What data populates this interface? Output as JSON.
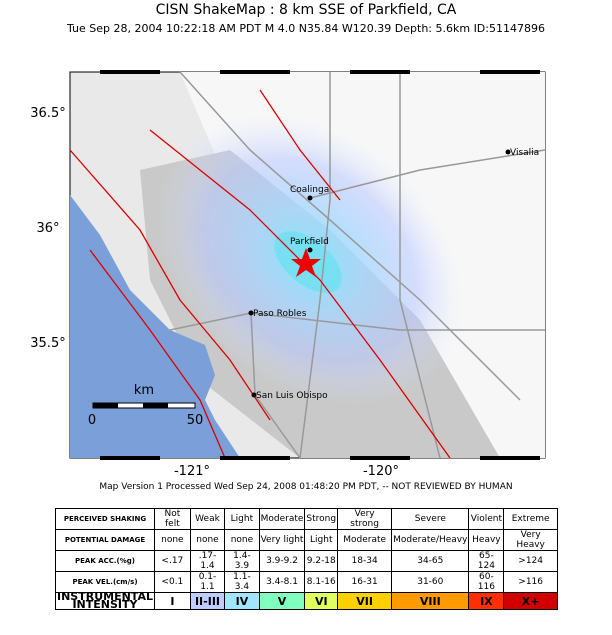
{
  "header": {
    "title": "CISN ShakeMap :  8 km SSE of Parkfield, CA",
    "subtitle": "Tue Sep 28, 2004 10:22:18 AM PDT   M 4.0   N35.84 W120.39   Depth: 5.6km   ID:51147896"
  },
  "map": {
    "lat_labels": [
      "36.5°",
      "36°",
      "35.5°"
    ],
    "lon_labels": [
      "-121°",
      "-120°"
    ],
    "cities": [
      "Visalia",
      "Coalinga",
      "Parkfield",
      "Paso Robles",
      "San Luis Obispo"
    ],
    "scale": {
      "unit": "km",
      "labels": [
        "0",
        "50"
      ]
    }
  },
  "footer": "Map Version 1 Processed Wed Sep 24, 2008 01:48:20 PM PDT, -- NOT REVIEWED BY HUMAN",
  "table": {
    "rows": [
      [
        "PERCEIVED SHAKING",
        "Not felt",
        "Weak",
        "Light",
        "Moderate",
        "Strong",
        "Very strong",
        "Severe",
        "Violent",
        "Extreme"
      ],
      [
        "POTENTIAL DAMAGE",
        "none",
        "none",
        "none",
        "Very light",
        "Light",
        "Moderate",
        "Moderate/Heavy",
        "Heavy",
        "Very Heavy"
      ],
      [
        "PEAK ACC.(%g)",
        "<.17",
        ".17-1.4",
        "1.4-3.9",
        "3.9-9.2",
        "9.2-18",
        "18-34",
        "34-65",
        "65-124",
        ">124"
      ],
      [
        "PEAK VEL.(cm/s)",
        "<0.1",
        "0.1-1.1",
        "1.1-3.4",
        "3.4-8.1",
        "8.1-16",
        "16-31",
        "31-60",
        "60-116",
        ">116"
      ],
      [
        "INSTRUMENTAL INTENSITY",
        "I",
        "II-III",
        "IV",
        "V",
        "VI",
        "VII",
        "VIII",
        "IX",
        "X+"
      ]
    ]
  }
}
